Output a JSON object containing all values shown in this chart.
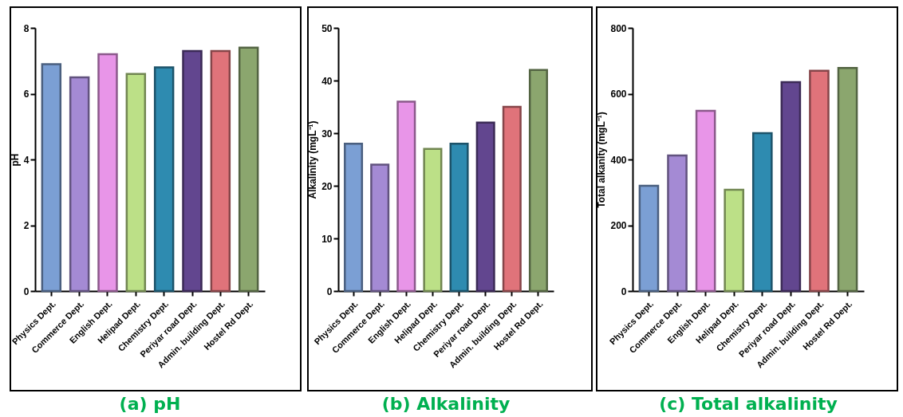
{
  "chart_data": [
    {
      "type": "bar",
      "title": "(a) pH",
      "ylabel": "pH",
      "categories": [
        "Physics Dept.",
        "Commerce Dept.",
        "English Dept.",
        "Helipad Dept.",
        "Chemistry Dept.",
        "Periyar road Dept.",
        "Admin. building Dept.",
        "Hostel Rd Dept."
      ],
      "values": [
        6.9,
        6.5,
        7.2,
        6.6,
        6.8,
        7.3,
        7.3,
        7.4
      ],
      "colors": [
        "#7b9fd4",
        "#a48ad4",
        "#e895e8",
        "#bce087",
        "#2e8bb0",
        "#62468f",
        "#e0737a",
        "#8ba66e"
      ],
      "ylim": [
        0,
        8
      ],
      "yticks": [
        0,
        2,
        4,
        6,
        8
      ]
    },
    {
      "type": "bar",
      "title": "(b) Alkalinity",
      "ylabel": "Alkalinity (mgL⁻¹)",
      "categories": [
        "Physics Dept.",
        "Commerce Dept.",
        "English Dept.",
        "Helipad Dept.",
        "Chemistry Dept.",
        "Periyar road Dept.",
        "Admin. building Dept.",
        "Hostel Rd Dept."
      ],
      "values": [
        28,
        24,
        36,
        27,
        28,
        32,
        35,
        42
      ],
      "colors": [
        "#7b9fd4",
        "#a48ad4",
        "#e895e8",
        "#bce087",
        "#2e8bb0",
        "#62468f",
        "#e0737a",
        "#8ba66e"
      ],
      "ylim": [
        0,
        50
      ],
      "yticks": [
        0,
        10,
        20,
        30,
        40,
        50
      ]
    },
    {
      "type": "bar",
      "title": "(c) Total alkalinity",
      "ylabel": "Total alkanity (mgL⁻¹)",
      "categories": [
        "Physics Dept.",
        "Commerce Dept.",
        "English Dept.",
        "Helipad Dept.",
        "Chemistry Dept.",
        "Periyar road Dept.",
        "Admin. building Dept.",
        "Hostel Rd Dept."
      ],
      "values": [
        320,
        412,
        548,
        308,
        480,
        635,
        670,
        678
      ],
      "colors": [
        "#7b9fd4",
        "#a48ad4",
        "#e895e8",
        "#bce087",
        "#2e8bb0",
        "#62468f",
        "#e0737a",
        "#8ba66e"
      ],
      "ylim": [
        0,
        800
      ],
      "yticks": [
        0,
        200,
        400,
        600,
        800
      ]
    }
  ]
}
